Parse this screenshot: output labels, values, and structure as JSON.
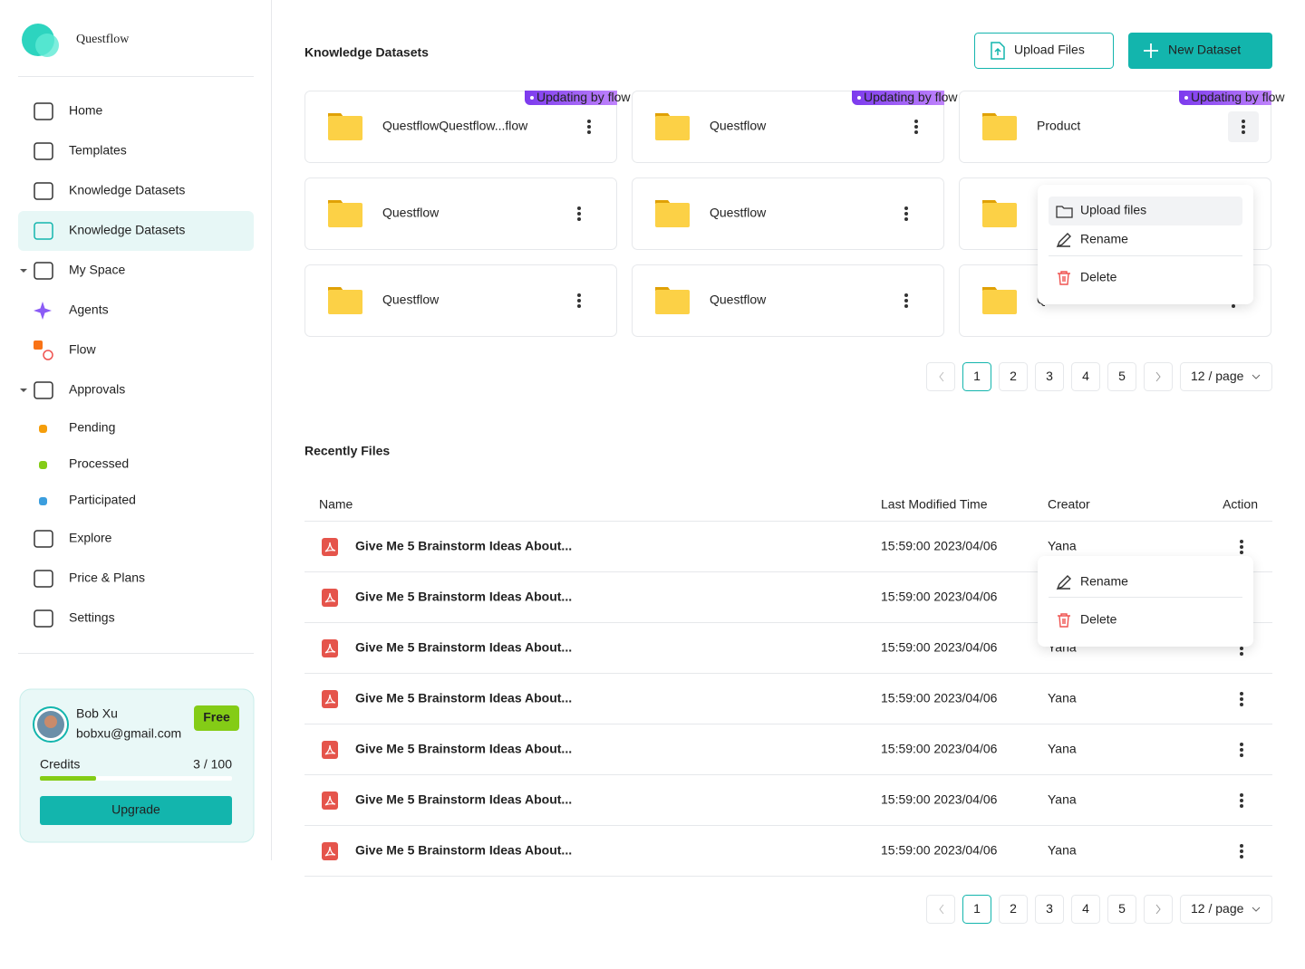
{
  "sidebar": {
    "brand": "Questflow",
    "nav": [
      "Home",
      "Templates",
      "Knowledge Datasets",
      "Knowledge Datasets",
      "My Space",
      "Agents",
      "Flow",
      "Approvals",
      "Pending",
      "Processed",
      "Participated",
      "Explore",
      "Price & Plans",
      "Settings"
    ],
    "user": {
      "name": "Bob Xu",
      "email": "bobxu@gmail.com",
      "plan": "Free",
      "credits_label": "Credits",
      "credits": "3 / 100"
    },
    "upgrade": "Upgrade"
  },
  "main": {
    "title": "Knowledge Datasets",
    "upload_button": "Upload Files",
    "new_button": "New Dataset",
    "datasets": [
      {
        "name": "QuestflowQuestflow...flow",
        "badge": "Updating by flow"
      },
      {
        "name": "Questflow",
        "badge": "Updating by flow"
      },
      {
        "name": "Product",
        "badge": "Updating by flow"
      },
      {
        "name": "Questflow"
      },
      {
        "name": "Questflow"
      },
      {},
      {
        "name": "Questflow"
      },
      {
        "name": "Questflow"
      },
      {
        "name": "Questflow"
      }
    ],
    "dataset_menu": [
      "Upload files",
      "Rename",
      "Delete"
    ],
    "pagination": {
      "pages": [
        "1",
        "2",
        "3",
        "4",
        "5"
      ],
      "page_size": "12 / page"
    },
    "recent_title": "Recently Files",
    "columns": [
      "Name",
      "Last Modified Time",
      "Creator",
      "Action"
    ],
    "files": [
      {
        "name": "Give Me 5 Brainstorm Ideas About...",
        "modified": "15:59:00 2023/04/06",
        "creator": "Yana"
      },
      {
        "name": "Give Me 5 Brainstorm Ideas About...",
        "modified": "15:59:00 2023/04/06"
      },
      {
        "name": "Give Me 5 Brainstorm Ideas About...",
        "modified": "15:59:00 2023/04/06",
        "creator": "Yana"
      },
      {
        "name": "Give Me 5 Brainstorm Ideas About...",
        "modified": "15:59:00 2023/04/06",
        "creator": "Yana"
      },
      {
        "name": "Give Me 5 Brainstorm Ideas About...",
        "modified": "15:59:00 2023/04/06",
        "creator": "Yana"
      },
      {
        "name": "Give Me 5 Brainstorm Ideas About...",
        "modified": "15:59:00 2023/04/06",
        "creator": "Yana"
      },
      {
        "name": "Give Me 5 Brainstorm Ideas About...",
        "modified": "15:59:00 2023/04/06",
        "creator": "Yana"
      }
    ],
    "file_menu": [
      "Rename",
      "Delete"
    ]
  }
}
